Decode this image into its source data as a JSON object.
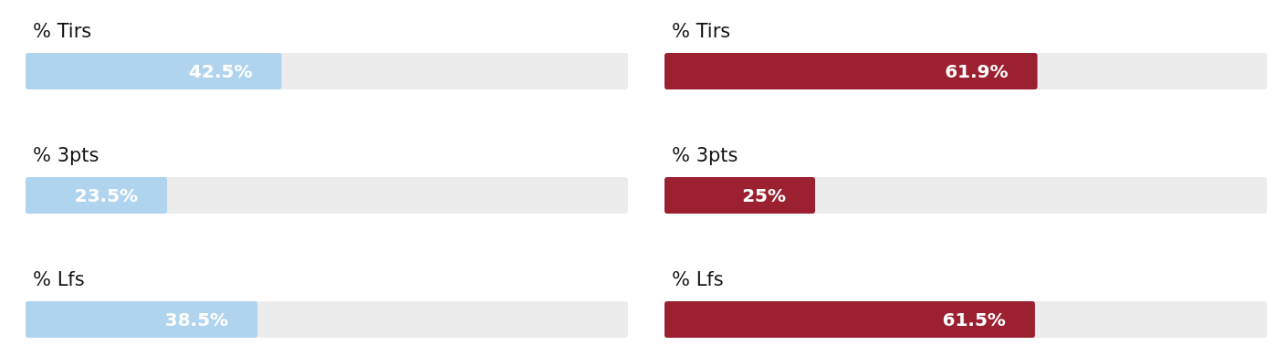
{
  "chart_data": [
    {
      "type": "bar",
      "orientation": "horizontal",
      "categories": [
        "% Tirs",
        "% 3pts",
        "% Lfs"
      ],
      "values": [
        42.5,
        23.5,
        38.5
      ],
      "value_labels": [
        "42.5%",
        "23.5%",
        "38.5%"
      ],
      "color": "#b0d3ee",
      "xlim": [
        0,
        100
      ],
      "tick_labels": "y"
    },
    {
      "type": "bar",
      "orientation": "horizontal",
      "categories": [
        "% Tirs",
        "% 3pts",
        "% Lfs"
      ],
      "values": [
        61.9,
        25,
        61.5
      ],
      "value_labels": [
        "61.9%",
        "25%",
        "61.5%"
      ],
      "color": "#9b2030",
      "xlim": [
        0,
        100
      ],
      "tick_labels": "y"
    }
  ]
}
